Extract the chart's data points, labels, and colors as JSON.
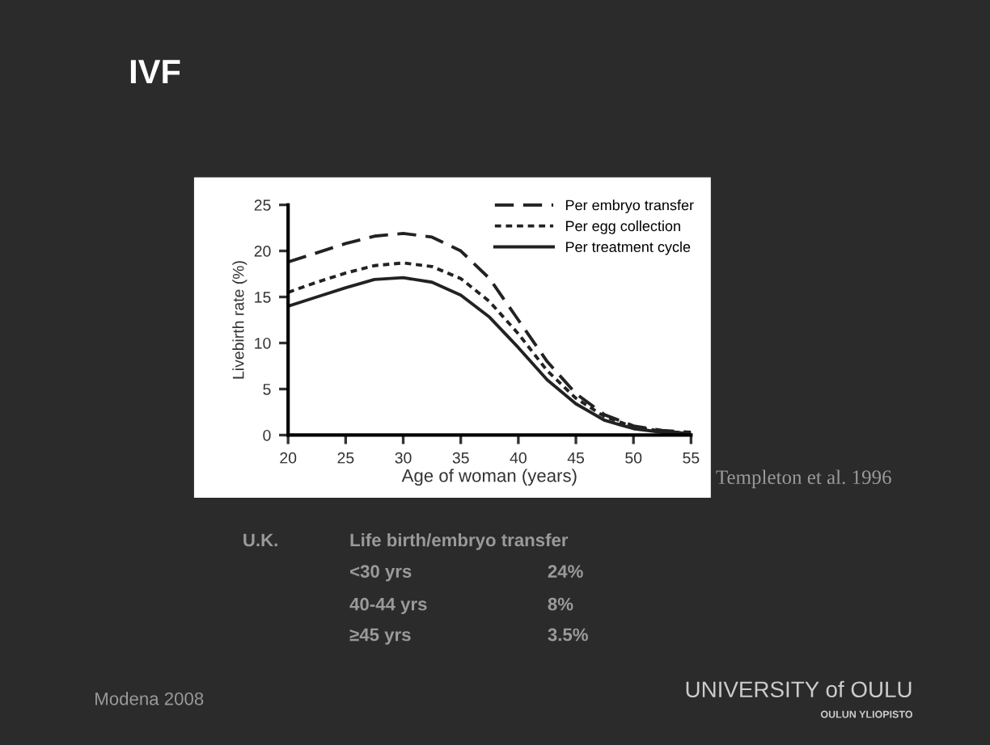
{
  "chart_data": {
    "type": "line",
    "title": "IVF",
    "xlabel": "Age of woman (years)",
    "ylabel": "Livebirth rate (%)",
    "x": [
      20,
      22.5,
      25,
      27.5,
      30,
      32.5,
      35,
      37.5,
      40,
      42.5,
      45,
      47.5,
      50,
      52.5,
      55
    ],
    "series": [
      {
        "name": "Per embryo transfer",
        "color": "#222222",
        "line_style": "dashed",
        "values": [
          18.8,
          19.8,
          20.8,
          21.6,
          21.9,
          21.5,
          20.0,
          17.0,
          12.5,
          8.0,
          4.5,
          2.2,
          1.0,
          0.5,
          0.3
        ]
      },
      {
        "name": "Per egg collection",
        "color": "#222222",
        "line_style": "dotted",
        "values": [
          15.5,
          16.6,
          17.6,
          18.4,
          18.7,
          18.3,
          17.0,
          14.5,
          11.0,
          7.0,
          4.0,
          2.0,
          0.9,
          0.4,
          0.2
        ]
      },
      {
        "name": "Per treatment cycle",
        "color": "#222222",
        "line_style": "solid",
        "values": [
          14.0,
          15.0,
          16.0,
          16.9,
          17.1,
          16.6,
          15.2,
          12.8,
          9.5,
          6.0,
          3.4,
          1.6,
          0.7,
          0.3,
          0.2
        ]
      }
    ],
    "xlim": [
      20,
      55
    ],
    "xticks": [
      20,
      25,
      30,
      35,
      40,
      45,
      50,
      55
    ],
    "ylim": [
      0,
      25
    ],
    "yticks": [
      0,
      5,
      10,
      15,
      20,
      25
    ],
    "grid": false,
    "legend": "top right",
    "marker": "none",
    "annotations": [
      "Templeton et al. 1996",
      "U.K.",
      "Life birth/embryo transfer",
      "<30 yrs",
      "24%",
      "40-44 yrs",
      "8%",
      "≥45 yrs",
      "3.5%",
      "Modena 2008",
      "UNIVERSITY of OULU",
      "OULUN YLIOPISTO"
    ]
  }
}
